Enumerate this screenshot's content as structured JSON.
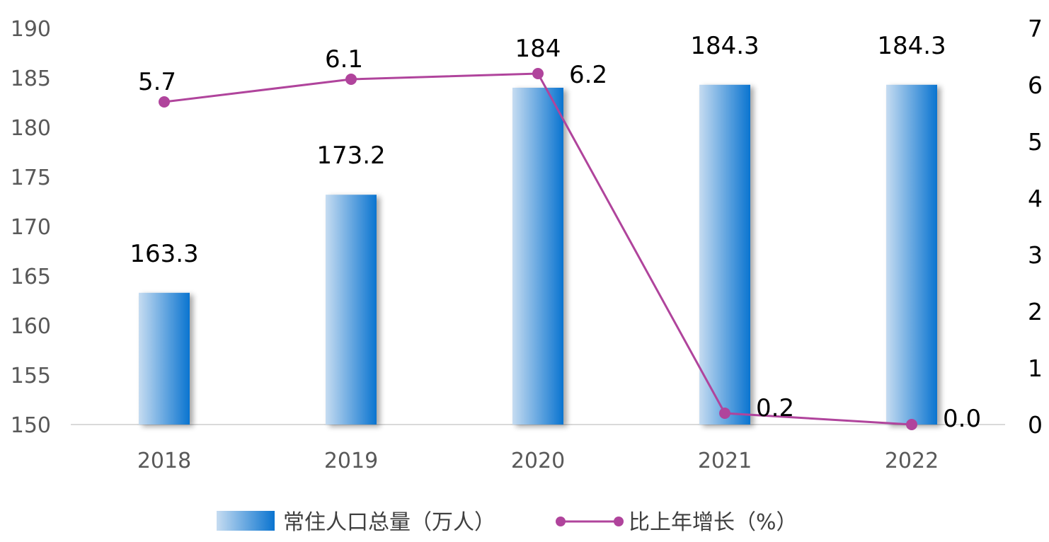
{
  "chart_data": {
    "type": "bar+line",
    "categories": [
      "2018",
      "2019",
      "2020",
      "2021",
      "2022"
    ],
    "series": [
      {
        "name": "常住人口总量（万人）",
        "type": "bar",
        "axis": "left",
        "values": [
          163.3,
          173.2,
          184,
          184.3,
          184.3
        ],
        "labels": [
          "163.3",
          "173.2",
          "184",
          "184.3",
          "184.3"
        ],
        "color_light": "#c6dcf1",
        "color_dark": "#0a74d0"
      },
      {
        "name": "比上年增长（%）",
        "type": "line",
        "axis": "right",
        "values": [
          5.7,
          6.1,
          6.2,
          0.2,
          0.0
        ],
        "labels": [
          "5.7",
          "6.1",
          "6.2",
          "0.2",
          "0.0"
        ],
        "color": "#b0449c"
      }
    ],
    "y_left": {
      "min": 150,
      "max": 190,
      "step": 5,
      "ticks": [
        "150",
        "155",
        "160",
        "165",
        "170",
        "175",
        "180",
        "185",
        "190"
      ]
    },
    "y_right": {
      "min": 0,
      "max": 7,
      "step": 1,
      "ticks": [
        "0",
        "1",
        "2",
        "3",
        "4",
        "5",
        "6",
        "7"
      ]
    },
    "legend_position": "bottom-center",
    "grid": false
  }
}
